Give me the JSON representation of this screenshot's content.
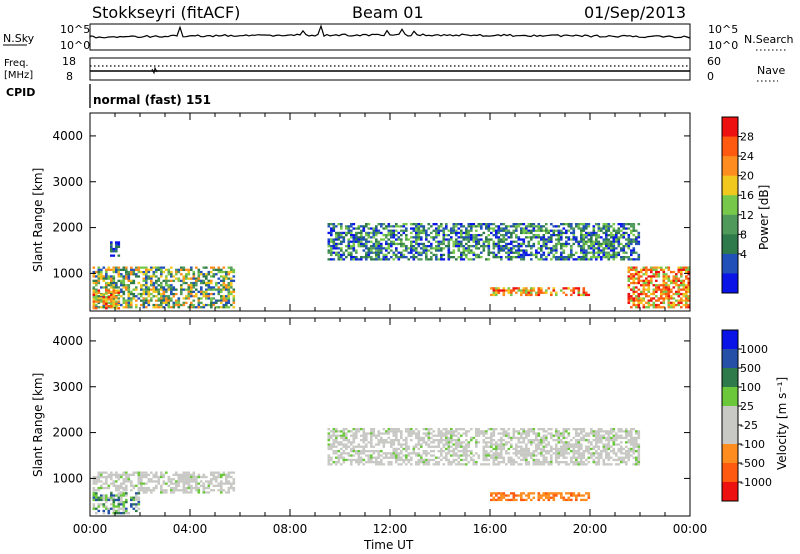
{
  "header": {
    "station": "Stokkseyri (fitACF)",
    "beam": "Beam 01",
    "date": "01/Sep/2013"
  },
  "nsky_panel": {
    "left_label": "N.Sky",
    "right_label": "N.Search",
    "left_ticks": [
      "10^5",
      "10^0"
    ],
    "right_ticks": [
      "10^5",
      "10^0"
    ]
  },
  "freq_panel": {
    "left_label_top": "Freq.",
    "left_label_unit": "[MHz]",
    "left_ticks": [
      "18",
      "8"
    ],
    "right_ticks": [
      "60",
      "0"
    ],
    "right_label": "Nave",
    "cpid_label": "CPID",
    "cpid_text": "normal (fast) 151"
  },
  "colors": {
    "power": [
      "#0a14e6",
      "#2050b8",
      "#2f7a4a",
      "#4f9a5a",
      "#77c84a",
      "#f0c81e",
      "#ff8c1e",
      "#ff5a10",
      "#ee1111"
    ],
    "velocity": [
      "#0a14e6",
      "#2650a8",
      "#2f7a4a",
      "#6ac83a",
      "#c8c8c4",
      "#c8c8c4",
      "#ff8c1e",
      "#ff5a10",
      "#ee1111"
    ]
  },
  "chart_data": [
    {
      "type": "heatmap",
      "name": "Power",
      "xlabel": "",
      "ylabel": "Slant Range [km]",
      "x_ticks": [
        "00:00",
        "04:00",
        "08:00",
        "12:00",
        "16:00",
        "20:00",
        "00:00"
      ],
      "x_range_hours": [
        0,
        24
      ],
      "y_ticks": [
        1000,
        2000,
        3000,
        4000
      ],
      "ylim": [
        180,
        4500
      ],
      "colorbar": {
        "label": "Power [dB]",
        "ticks": [
          "28",
          "24",
          "20",
          "16",
          "12",
          "8",
          "4"
        ],
        "range": [
          0,
          30
        ]
      },
      "echo_regions": [
        {
          "t": [
            0.1,
            5.8
          ],
          "r": [
            250,
            1150
          ],
          "level": "medium-high"
        },
        {
          "t": [
            0.1,
            1.2
          ],
          "r": [
            250,
            650
          ],
          "level": "high"
        },
        {
          "t": [
            0.8,
            1.2
          ],
          "r": [
            1400,
            1700
          ],
          "level": "low"
        },
        {
          "t": [
            9.5,
            22.0
          ],
          "r": [
            1300,
            2100
          ],
          "level": "medium"
        },
        {
          "t": [
            16.0,
            20.0
          ],
          "r": [
            550,
            700
          ],
          "level": "high"
        },
        {
          "t": [
            21.5,
            24.0
          ],
          "r": [
            250,
            1150
          ],
          "level": "high"
        }
      ]
    },
    {
      "type": "heatmap",
      "name": "Velocity",
      "xlabel": "Time UT",
      "ylabel": "Slant Range [km]",
      "x_ticks": [
        "00:00",
        "04:00",
        "08:00",
        "12:00",
        "16:00",
        "20:00",
        "00:00"
      ],
      "x_range_hours": [
        0,
        24
      ],
      "y_ticks": [
        1000,
        2000,
        3000,
        4000
      ],
      "ylim": [
        180,
        4500
      ],
      "colorbar": {
        "label": "Velocity [m s⁻¹]",
        "ticks": [
          "1000",
          "500",
          "100",
          "25",
          "-25",
          "-100",
          "-500",
          "-1000"
        ],
        "range": [
          -1200,
          1200
        ]
      },
      "echo_regions": [
        {
          "t": [
            0.1,
            5.8
          ],
          "r": [
            700,
            1150
          ],
          "level": "ground"
        },
        {
          "t": [
            0.1,
            2.0
          ],
          "r": [
            250,
            700
          ],
          "level": "positive"
        },
        {
          "t": [
            9.5,
            22.0
          ],
          "r": [
            1300,
            2100
          ],
          "level": "ground"
        },
        {
          "t": [
            16.0,
            20.0
          ],
          "r": [
            550,
            700
          ],
          "level": "negative"
        }
      ]
    }
  ]
}
